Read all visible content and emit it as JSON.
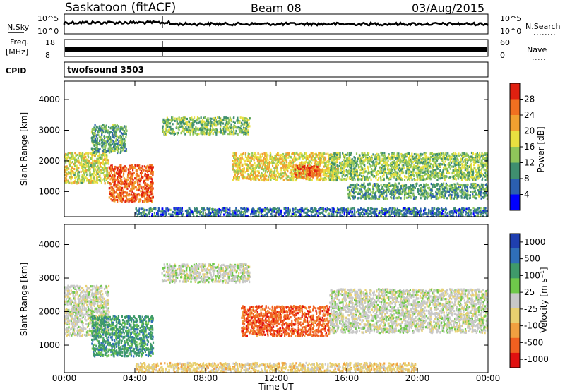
{
  "header": {
    "station": "Saskatoon (fitACF)",
    "beam": "Beam 08",
    "date": "03/Aug/2015"
  },
  "summary": {
    "left_labels": {
      "nsky": "N.Sky",
      "freq": "Freq.",
      "freq_unit": "[MHz]",
      "cpid": "CPID"
    },
    "right_labels": {
      "nsearch": "N.Search",
      "nave": "Nave"
    },
    "nsky_ticks": [
      "10^5",
      "10^0"
    ],
    "nsearch_ticks": [
      "10^5",
      "10^0"
    ],
    "freq_ticks": [
      "18",
      "8"
    ],
    "nave_ticks": [
      "60",
      "0"
    ],
    "cpid_text": "twofsound 3503"
  },
  "chart_data": [
    {
      "type": "heatmap",
      "name": "power",
      "ylabel": "Slant Range [km]",
      "ylim": [
        180,
        4600
      ],
      "yticks": [
        "1000",
        "2000",
        "3000",
        "4000"
      ],
      "colorbar_label": "Power [dB]",
      "colorbar_ticks": [
        "4",
        "8",
        "12",
        "16",
        "20",
        "24",
        "28"
      ],
      "colorbar_colors": [
        "#0000ff",
        "#2b5fb0",
        "#3f8f6f",
        "#8fc65a",
        "#e8e040",
        "#f0a030",
        "#f07020",
        "#e02010"
      ],
      "regions": [
        {
          "t0": 0.0,
          "t1": 2.5,
          "r0": 1300,
          "r1": 2300,
          "level": 16
        },
        {
          "t0": 2.5,
          "t1": 5.0,
          "r0": 700,
          "r1": 1900,
          "level": 26
        },
        {
          "t0": 1.5,
          "t1": 3.5,
          "r0": 2300,
          "r1": 3200,
          "level": 10
        },
        {
          "t0": 5.5,
          "t1": 10.5,
          "r0": 2900,
          "r1": 3450,
          "level": 12
        },
        {
          "t0": 9.5,
          "t1": 15.5,
          "r0": 1400,
          "r1": 2300,
          "level": 18
        },
        {
          "t0": 13.0,
          "t1": 14.5,
          "r0": 1500,
          "r1": 1900,
          "level": 27
        },
        {
          "t0": 15.0,
          "t1": 24.0,
          "r0": 1400,
          "r1": 2300,
          "level": 13
        },
        {
          "t0": 16.0,
          "t1": 24.0,
          "r0": 800,
          "r1": 1300,
          "level": 10
        },
        {
          "t0": 4.0,
          "t1": 24.0,
          "r0": 200,
          "r1": 500,
          "level": 6
        }
      ]
    },
    {
      "type": "heatmap",
      "name": "velocity",
      "ylabel": "Slant Range [km]",
      "ylim": [
        180,
        4600
      ],
      "yticks": [
        "1000",
        "2000",
        "3000",
        "4000"
      ],
      "colorbar_label": "Velocity [m s⁻¹]",
      "colorbar_ticks": [
        "1000",
        "500",
        "100",
        "25",
        "-25",
        "-100",
        "-500",
        "-1000"
      ],
      "colorbar_colors": [
        "#1f3fb0",
        "#2f6fb8",
        "#3f9a6a",
        "#6fc84a",
        "#c8c8c8",
        "#e8d070",
        "#f0a040",
        "#f06020",
        "#e01010"
      ],
      "regions": [
        {
          "t0": 0.0,
          "t1": 2.5,
          "r0": 1300,
          "r1": 2800,
          "vel": 0
        },
        {
          "t0": 1.5,
          "t1": 5.0,
          "r0": 700,
          "r1": 1900,
          "vel": 300
        },
        {
          "t0": 5.5,
          "t1": 10.5,
          "r0": 2900,
          "r1": 3450,
          "vel": 0
        },
        {
          "t0": 10.0,
          "t1": 15.0,
          "r0": 1300,
          "r1": 2200,
          "vel": -300
        },
        {
          "t0": 15.0,
          "t1": 24.0,
          "r0": 1400,
          "r1": 2700,
          "vel": 0
        },
        {
          "t0": 4.0,
          "t1": 20.0,
          "r0": 200,
          "r1": 500,
          "vel": -60
        }
      ]
    }
  ],
  "time_axis": {
    "xlabel": "Time UT",
    "xlim": [
      0,
      24
    ],
    "ticks": [
      "00:00",
      "04:00",
      "08:00",
      "12:00",
      "16:00",
      "20:00",
      "00:00"
    ]
  }
}
